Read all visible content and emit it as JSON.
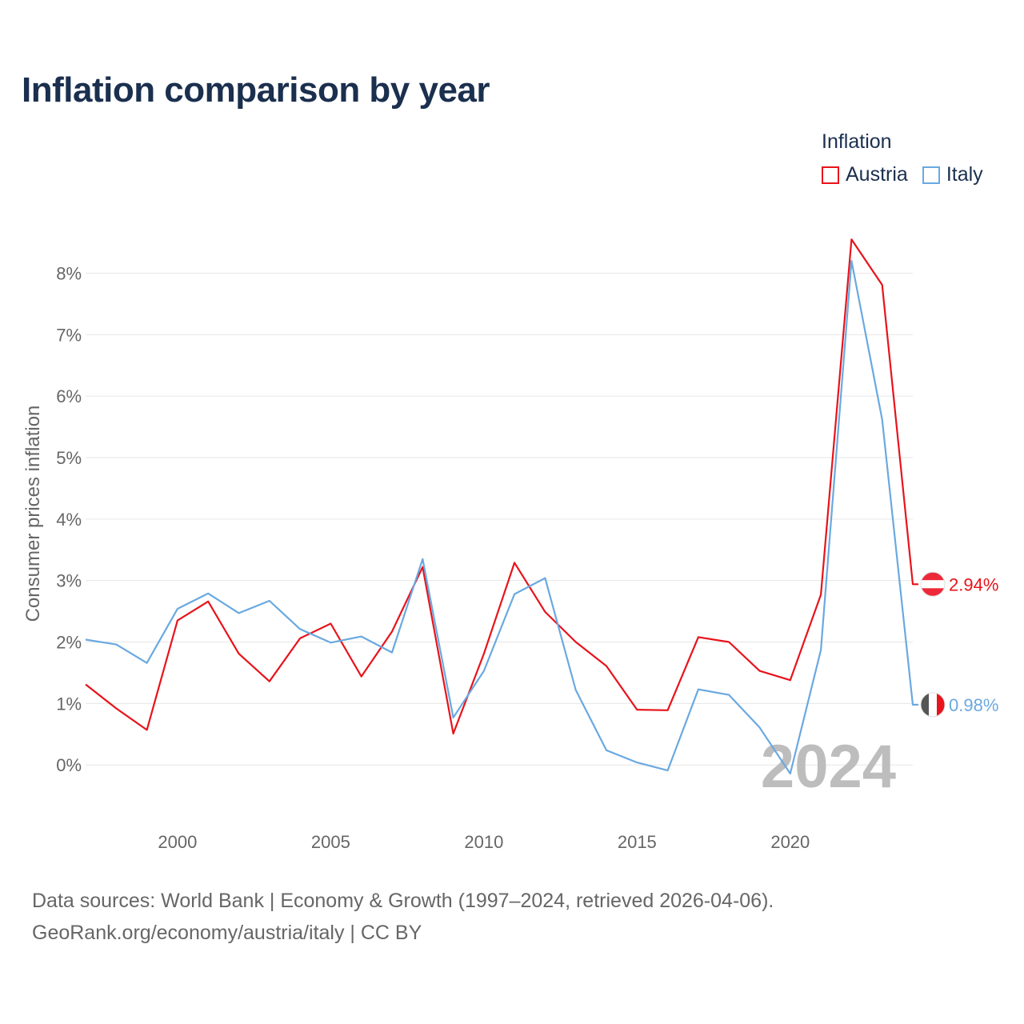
{
  "title": "Inflation comparison by year",
  "legend": {
    "title": "Inflation",
    "items": [
      {
        "label": "Austria",
        "color": "#e8131b"
      },
      {
        "label": "Italy",
        "color": "#6aa9e0"
      }
    ]
  },
  "chart_data": {
    "type": "line",
    "title": "Inflation comparison by year",
    "xlabel": "",
    "ylabel": "Consumer prices inflation",
    "x": [
      1997,
      1998,
      1999,
      2000,
      2001,
      2002,
      2003,
      2004,
      2005,
      2006,
      2007,
      2008,
      2009,
      2010,
      2011,
      2012,
      2013,
      2014,
      2015,
      2016,
      2017,
      2018,
      2019,
      2020,
      2021,
      2022,
      2023,
      2024
    ],
    "xlim": [
      1997,
      2024
    ],
    "ylim": [
      -0.7,
      8.8
    ],
    "xticks": [
      2000,
      2005,
      2010,
      2015,
      2020
    ],
    "yticks": [
      0,
      1,
      2,
      3,
      4,
      5,
      6,
      7,
      8
    ],
    "ytick_labels": [
      "0%",
      "1%",
      "2%",
      "3%",
      "4%",
      "5%",
      "6%",
      "7%",
      "8%"
    ],
    "grid": true,
    "watermark_year": "2024",
    "series": [
      {
        "name": "Austria",
        "color": "#e8131b",
        "end_label": "2.94%",
        "flag": "austria",
        "values": [
          1.31,
          0.92,
          0.57,
          2.35,
          2.66,
          1.81,
          1.36,
          2.06,
          2.3,
          1.44,
          2.17,
          3.22,
          0.51,
          1.81,
          3.29,
          2.49,
          2.0,
          1.61,
          0.9,
          0.89,
          2.08,
          2.0,
          1.53,
          1.38,
          2.77,
          8.55,
          7.81,
          2.94
        ]
      },
      {
        "name": "Italy",
        "color": "#6aa9e0",
        "end_label": "0.98%",
        "flag": "italy",
        "values": [
          2.04,
          1.96,
          1.66,
          2.54,
          2.79,
          2.47,
          2.67,
          2.21,
          1.99,
          2.09,
          1.83,
          3.35,
          0.77,
          1.53,
          2.78,
          3.04,
          1.22,
          0.24,
          0.04,
          -0.09,
          1.23,
          1.14,
          0.61,
          -0.14,
          1.87,
          8.2,
          5.62,
          0.98
        ]
      }
    ]
  },
  "footer": {
    "line1": "Data sources: World Bank | Economy & Growth (1997–2024, retrieved 2026-04-06).",
    "line2": "GeoRank.org/economy/austria/italy | CC BY"
  }
}
